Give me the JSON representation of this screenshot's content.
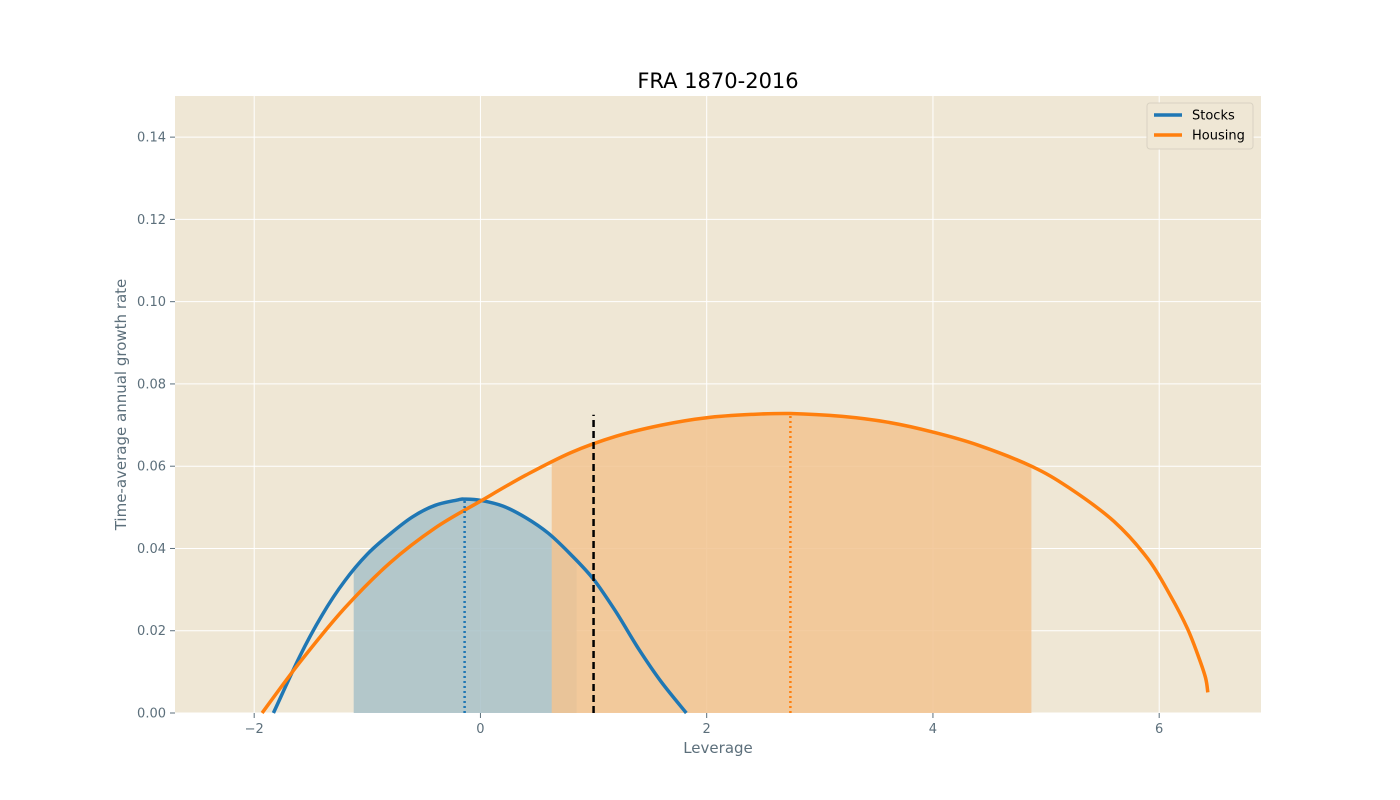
{
  "chart_data": {
    "type": "line",
    "title": "FRA 1870-2016",
    "xlabel": "Leverage",
    "ylabel": "Time-average annual growth rate",
    "xlim": [
      -2.7,
      6.9
    ],
    "ylim": [
      0,
      0.15
    ],
    "xticks": [
      -2,
      0,
      2,
      4,
      6
    ],
    "xtick_labels": [
      "−2",
      "0",
      "2",
      "4",
      "6"
    ],
    "yticks": [
      0,
      0.02,
      0.04,
      0.06,
      0.08,
      0.1,
      0.12,
      0.14
    ],
    "ytick_labels": [
      "0.00",
      "0.02",
      "0.04",
      "0.06",
      "0.08",
      "0.10",
      "0.12",
      "0.14"
    ],
    "grid": true,
    "legend_position": "top-right",
    "background_color": "#efe7d5",
    "series": [
      {
        "name": "Stocks",
        "color": "#1f77b4",
        "x": [
          -1.83,
          -1.6,
          -1.4,
          -1.2,
          -1.0,
          -0.8,
          -0.6,
          -0.4,
          -0.2,
          -0.14,
          0.0,
          0.2,
          0.4,
          0.6,
          0.8,
          1.0,
          1.2,
          1.4,
          1.6,
          1.82
        ],
        "y": [
          0.0,
          0.0136,
          0.0238,
          0.0321,
          0.0386,
          0.0435,
          0.0477,
          0.0505,
          0.0518,
          0.052,
          0.0517,
          0.0503,
          0.0475,
          0.0437,
          0.0385,
          0.0325,
          0.0245,
          0.0155,
          0.0075,
          0.0
        ],
        "peak_x": -0.14,
        "peak_y": 0.052,
        "band": [
          -1.12,
          0.85
        ],
        "band_color": "#a8c1c8"
      },
      {
        "name": "Housing",
        "color": "#ff7f0e",
        "x": [
          -1.93,
          -1.6,
          -1.2,
          -0.8,
          -0.4,
          0.0,
          0.4,
          0.8,
          1.2,
          1.6,
          2.0,
          2.4,
          2.74,
          3.2,
          3.6,
          4.0,
          4.4,
          4.87,
          5.2,
          5.6,
          5.9,
          6.1,
          6.25,
          6.35,
          6.41,
          6.43
        ],
        "y": [
          0.0,
          0.0122,
          0.0255,
          0.0365,
          0.045,
          0.0515,
          0.0578,
          0.0633,
          0.0673,
          0.07,
          0.0718,
          0.0726,
          0.0728,
          0.0721,
          0.0707,
          0.0683,
          0.0651,
          0.06,
          0.0548,
          0.0466,
          0.0375,
          0.0285,
          0.0205,
          0.0135,
          0.0085,
          0.005
        ],
        "peak_x": 2.74,
        "peak_y": 0.0728,
        "band": [
          0.63,
          4.87
        ],
        "band_color": "#f2c390"
      }
    ],
    "reference_line": {
      "x": 1.0,
      "y_top": 0.0725,
      "color": "#000000",
      "style": "dashed"
    }
  }
}
